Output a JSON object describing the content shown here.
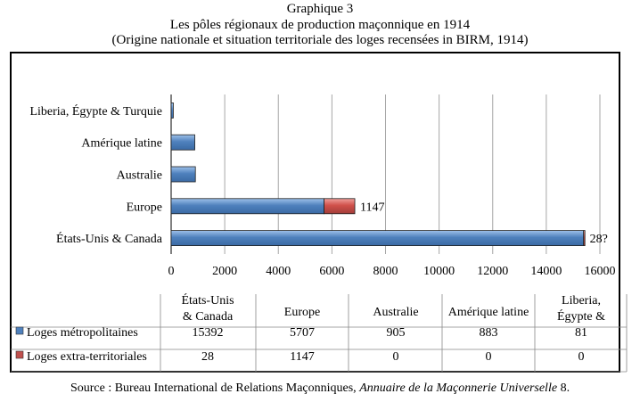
{
  "header": {
    "title": "Graphique 3",
    "subtitle": "Les pôles régionaux de production maçonnique en 1914",
    "subtitle2": "(Origine nationale et situation territoriale des loges recensées in BIRM, 1914)"
  },
  "source": {
    "prefix": "Source : Bureau International de Relations Maçonniques, ",
    "work": "Annuaire de la Maçonnerie Universelle",
    "suffix": " 8."
  },
  "colors": {
    "metro": "#4f81bd",
    "extra": "#c0504d",
    "grid": "#a6a6a6"
  },
  "chart_data": {
    "type": "bar",
    "orientation": "horizontal",
    "stacked": true,
    "categories": [
      "États-Unis & Canada",
      "Europe",
      "Australie",
      "Amérique latine",
      "Liberia, Égypte & Turquie"
    ],
    "table_headers": [
      "États-Unis & Canada",
      "Europe",
      "Australie",
      "Amérique latine",
      "Liberia, Égypte & Turquie"
    ],
    "series": [
      {
        "name": "Loges métropolitaines",
        "values": [
          15392,
          5707,
          905,
          883,
          81
        ]
      },
      {
        "name": "Loges extra-territoriales",
        "values": [
          28,
          1147,
          0,
          0,
          0
        ]
      }
    ],
    "bar_labels": [
      "28?",
      "1147",
      "",
      "",
      ""
    ],
    "xticks": [
      "0",
      "2000",
      "4000",
      "6000",
      "8000",
      "10000",
      "12000",
      "14000",
      "16000"
    ],
    "xlim": [
      0,
      16000
    ],
    "grid": true,
    "legend": "table-bottom"
  }
}
